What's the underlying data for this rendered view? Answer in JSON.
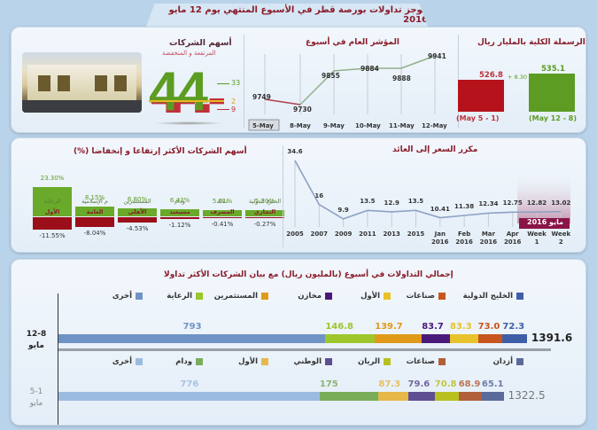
{
  "header": {
    "title": "موجز تداولات بورصة قطر في الأسبوع المنتهي يوم 12 مايو 2016"
  },
  "market_cap": {
    "title": "الرسملة الكلية بالمليار ريال",
    "prev": {
      "value": "526.8",
      "label": "(May 5 - 1)",
      "color": "#b5121b"
    },
    "curr": {
      "value": "535.1",
      "label": "(May 12 - 8)",
      "color": "#5c9c22"
    },
    "change": "+ 8.30"
  },
  "index": {
    "title": "المؤشر العام في أسبوع",
    "points": [
      {
        "x": "5-May",
        "y": "9749"
      },
      {
        "x": "8-May",
        "y": "9730"
      },
      {
        "x": "9-May",
        "y": "9855"
      },
      {
        "x": "10-May",
        "y": "9884"
      },
      {
        "x": "11-May",
        "y": "9888"
      },
      {
        "x": "12-May",
        "y": "9941"
      }
    ]
  },
  "stocks_summary": {
    "title": "أسهم الشركات",
    "subtitle": "المرتفعة و المنخفضة",
    "total": "44",
    "up": "33",
    "unchanged": "2",
    "down": "9"
  },
  "movers": {
    "title": "أسهم الشركات الأكثر إرتفاعا و إنخفاضا (%)",
    "gainers": [
      {
        "name": "الرعاية",
        "value": "23.30%"
      },
      {
        "name": "م الإسلامية",
        "value": "8.15%"
      },
      {
        "name": "المستثمرين",
        "value": "6.80%"
      },
      {
        "name": "ودام",
        "value": "6.43%"
      },
      {
        "name": "دلالة",
        "value": "5.61%"
      },
      {
        "name": "الخليج الدولية",
        "value": "5.30%"
      }
    ],
    "losers": [
      {
        "name": "الأول",
        "value": "-11.55%"
      },
      {
        "name": "العامة",
        "value": "-8.04%"
      },
      {
        "name": "الأهلي",
        "value": "-4.53%"
      },
      {
        "name": "مسيعيد",
        "value": "-1.12%"
      },
      {
        "name": "المصرف",
        "value": "-0.41%"
      },
      {
        "name": "التجاري",
        "value": "-0.27%"
      }
    ]
  },
  "pe": {
    "title": "مكرر السعر إلى العائد",
    "highlight_label": "مايو 2016",
    "points": [
      {
        "x": "2005",
        "x2": "",
        "y": "34.6"
      },
      {
        "x": "2007",
        "x2": "",
        "y": "16"
      },
      {
        "x": "2009",
        "x2": "",
        "y": "9.9"
      },
      {
        "x": "2011",
        "x2": "",
        "y": "13.5"
      },
      {
        "x": "2013",
        "x2": "",
        "y": "12.9"
      },
      {
        "x": "2015",
        "x2": "",
        "y": "13.5"
      },
      {
        "x": "Jan",
        "x2": "2016",
        "y": "10.41"
      },
      {
        "x": "Feb",
        "x2": "2016",
        "y": "11.38"
      },
      {
        "x": "Mar",
        "x2": "2016",
        "y": "12.34"
      },
      {
        "x": "Apr",
        "x2": "2016",
        "y": "12.75"
      },
      {
        "x": "Week",
        "x2": "1",
        "y": "12.82"
      },
      {
        "x": "Week",
        "x2": "2",
        "y": "13.02"
      }
    ]
  },
  "turnover": {
    "title": "إجمالي التداولات في أسبوع (بالمليون ريال) مع بيان الشركات الأكثر تداولا",
    "week2": {
      "label1": "12-8",
      "label2": "مايو",
      "total": "1391.6",
      "legend": [
        {
          "name": "الخليج الدولية",
          "color": "#3f5ea8"
        },
        {
          "name": "صناعات",
          "color": "#c8551d"
        },
        {
          "name": "الأول",
          "color": "#e8c22a"
        },
        {
          "name": "مخازن",
          "color": "#4a1a7a"
        },
        {
          "name": "المستثمرين",
          "color": "#e09a18"
        },
        {
          "name": "الرعاية",
          "color": "#9cc62a"
        },
        {
          "name": "أخرى",
          "color": "#6f93c4"
        }
      ],
      "segments": [
        {
          "name": "أخرى",
          "value": "793",
          "color": "#6f93c4"
        },
        {
          "name": "الرعاية",
          "value": "146.8",
          "color": "#9cc62a"
        },
        {
          "name": "المستثمرين",
          "value": "139.7",
          "color": "#e09a18"
        },
        {
          "name": "مخازن",
          "value": "83.7",
          "color": "#4a1a7a"
        },
        {
          "name": "الأول",
          "value": "83.3",
          "color": "#e8c22a"
        },
        {
          "name": "صناعات",
          "value": "73.0",
          "color": "#c8551d"
        },
        {
          "name": "الخليج الدولية",
          "value": "72.3",
          "color": "#3f5ea8"
        }
      ]
    },
    "week1": {
      "label1": "5-1",
      "label2": "مايو",
      "total": "1322.5",
      "legend": [
        {
          "name": "أزدان",
          "color": "#5a6a9a"
        },
        {
          "name": "صناعات",
          "color": "#b0603a"
        },
        {
          "name": "الريان",
          "color": "#b8c020"
        },
        {
          "name": "الوطني",
          "color": "#5e4f92"
        },
        {
          "name": "الأول",
          "color": "#e6b84a"
        },
        {
          "name": "ودام",
          "color": "#7aad5a"
        },
        {
          "name": "أخرى",
          "color": "#9dbbe0"
        }
      ],
      "segments": [
        {
          "name": "أخرى",
          "value": "776",
          "color": "#9dbbe0"
        },
        {
          "name": "ودام",
          "value": "175",
          "color": "#7aad5a"
        },
        {
          "name": "الأول",
          "value": "87.3",
          "color": "#e6b84a"
        },
        {
          "name": "الوطني",
          "value": "79.6",
          "color": "#5e4f92"
        },
        {
          "name": "الريان",
          "value": "70.8",
          "color": "#b8c020"
        },
        {
          "name": "صناعات",
          "value": "68.9",
          "color": "#b0603a"
        },
        {
          "name": "أزدان",
          "value": "65.1",
          "color": "#5a6a9a"
        }
      ]
    }
  },
  "chart_data": [
    {
      "type": "bar",
      "title": "الرسملة الكلية بالمليار ريال",
      "categories": [
        "(May 5 - 1)",
        "(May 12 - 8)"
      ],
      "values": [
        526.8,
        535.1
      ],
      "annotation": "+ 8.30"
    },
    {
      "type": "line",
      "title": "المؤشر العام في أسبوع",
      "x": [
        "5-May",
        "8-May",
        "9-May",
        "10-May",
        "11-May",
        "12-May"
      ],
      "values": [
        9749,
        9730,
        9855,
        9884,
        9888,
        9941
      ]
    },
    {
      "type": "bar",
      "title": "أسهم الشركات المرتفعة و المنخفضة",
      "categories": [
        "up",
        "unchanged",
        "down"
      ],
      "values": [
        33,
        2,
        9
      ],
      "total": 44
    },
    {
      "type": "bar",
      "title": "أسهم الشركات الأكثر إرتفاعا و إنخفاضا (%)",
      "series": [
        {
          "name": "gainers",
          "categories": [
            "الرعاية",
            "م الإسلامية",
            "المستثمرين",
            "ودام",
            "دلالة",
            "الخليج الدولية"
          ],
          "values": [
            23.3,
            8.15,
            6.8,
            6.43,
            5.61,
            5.3
          ]
        },
        {
          "name": "losers",
          "categories": [
            "الأول",
            "العامة",
            "الأهلي",
            "مسيعيد",
            "المصرف",
            "التجاري"
          ],
          "values": [
            -11.55,
            -8.04,
            -4.53,
            -1.12,
            -0.41,
            -0.27
          ]
        }
      ]
    },
    {
      "type": "line",
      "title": "مكرر السعر إلى العائد",
      "x": [
        "2005",
        "2007",
        "2009",
        "2011",
        "2013",
        "2015",
        "Jan 2016",
        "Feb 2016",
        "Mar 2016",
        "Apr 2016",
        "Week 1",
        "Week 2"
      ],
      "values": [
        34.6,
        16,
        9.9,
        13.5,
        12.9,
        13.5,
        10.41,
        11.38,
        12.34,
        12.75,
        12.82,
        13.02
      ],
      "annotation": "مايو 2016"
    },
    {
      "type": "bar",
      "title": "إجمالي التداولات في أسبوع (بالمليون ريال) مع بيان الشركات الأكثر تداولا",
      "stacked": true,
      "orientation": "horizontal",
      "categories": [
        "12-8 مايو",
        "5-1 مايو"
      ],
      "series": [
        {
          "name": "12-8 مايو",
          "labels": [
            "أخرى",
            "الرعاية",
            "المستثمرين",
            "مخازن",
            "الأول",
            "صناعات",
            "الخليج الدولية"
          ],
          "values": [
            793,
            146.8,
            139.7,
            83.7,
            83.3,
            73.0,
            72.3
          ],
          "total": 1391.6
        },
        {
          "name": "5-1 مايو",
          "labels": [
            "أخرى",
            "ودام",
            "الأول",
            "الوطني",
            "الريان",
            "صناعات",
            "أزدان"
          ],
          "values": [
            776,
            175,
            87.3,
            79.6,
            70.8,
            68.9,
            65.1
          ],
          "total": 1322.5
        }
      ]
    }
  ]
}
